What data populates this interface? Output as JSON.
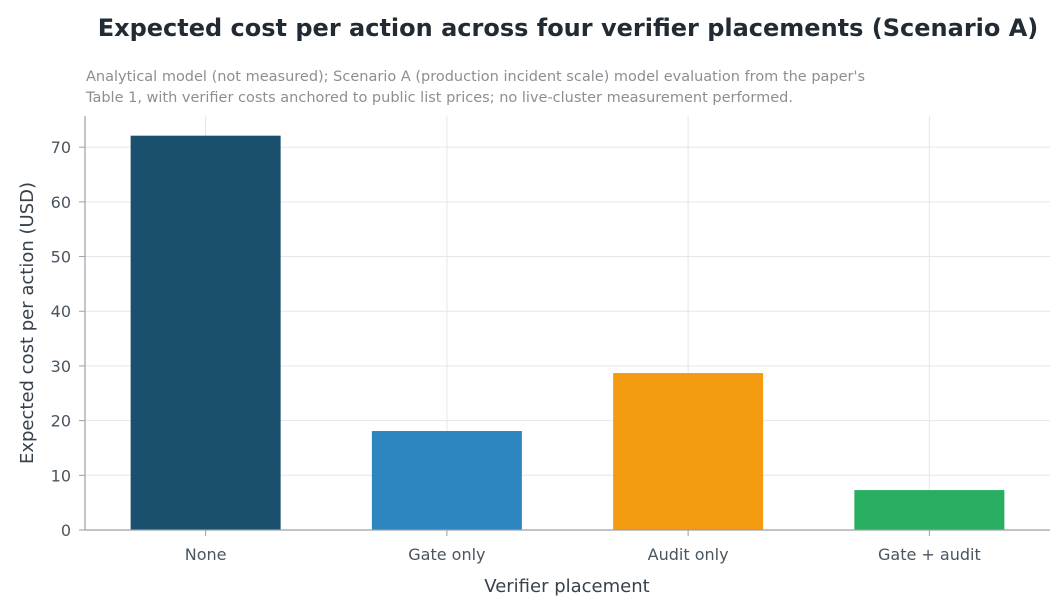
{
  "chart_data": {
    "type": "bar",
    "title": "Expected cost per action across four verifier placements (Scenario A)",
    "subtitle": [
      "Analytical model (not measured); Scenario A (production incident scale) model evaluation from the paper's",
      "Table 1, with verifier costs anchored to public list prices; no live-cluster measurement performed."
    ],
    "xlabel": "Verifier placement",
    "ylabel": "Expected cost per action (USD)",
    "categories": [
      "None",
      "Gate only",
      "Audit only",
      "Gate + audit"
    ],
    "values": [
      72.1,
      18.1,
      28.7,
      7.3
    ],
    "colors": [
      "#1b4f6e",
      "#2e86c1",
      "#f39c12",
      "#27ae60"
    ],
    "yticks": [
      0,
      10,
      20,
      30,
      40,
      50,
      60,
      70
    ],
    "ylim": [
      0,
      75.7
    ],
    "grid": true,
    "legend": "none"
  }
}
